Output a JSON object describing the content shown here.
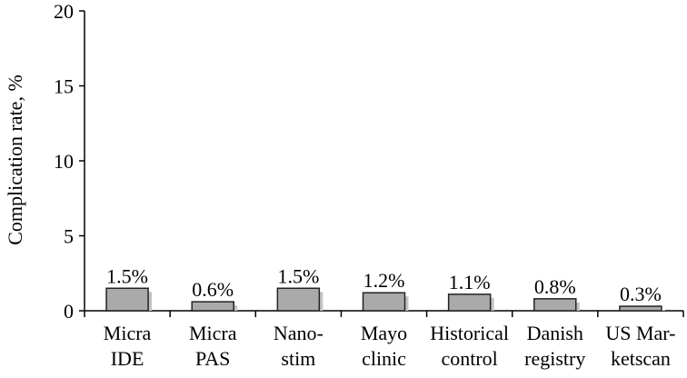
{
  "chart_data": {
    "type": "bar",
    "ylabel": "Complication rate, %",
    "xlabel": "",
    "title": "",
    "ylim": [
      0,
      20
    ],
    "yticks": [
      0,
      5,
      10,
      15,
      20
    ],
    "grid": false,
    "categories": [
      [
        "Micra",
        "IDE"
      ],
      [
        "Micra",
        "PAS"
      ],
      [
        "Nano-",
        "stim"
      ],
      [
        "Mayo",
        "clinic"
      ],
      [
        "Historical",
        "control"
      ],
      [
        "Danish",
        "registry"
      ],
      [
        "US Mar-",
        "ketscan"
      ]
    ],
    "values": [
      1.5,
      0.6,
      1.5,
      1.2,
      1.1,
      0.8,
      0.3
    ],
    "data_labels": [
      "1.5%",
      "0.6%",
      "1.5%",
      "1.2%",
      "1.1%",
      "0.8%",
      "0.3%"
    ],
    "colors": {
      "bar_fill": "#aaaaaa",
      "bar_stroke": "#222222",
      "shadow": "#c4c4c4",
      "axis": "#000000"
    }
  }
}
